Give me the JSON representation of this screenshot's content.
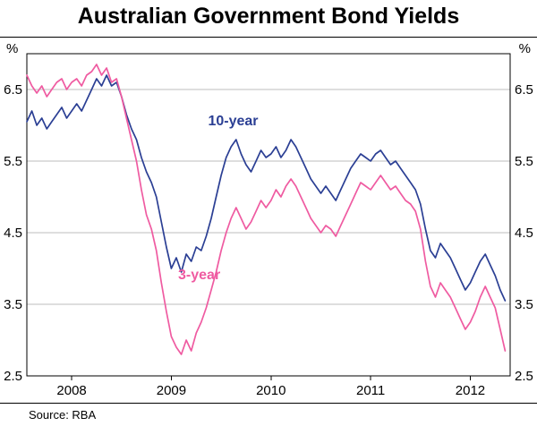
{
  "title": "Australian Government Bond Yields",
  "units": {
    "left": "%",
    "right": "%"
  },
  "source": "Source: RBA",
  "chart_data": {
    "type": "line",
    "title": "Australian Government Bond Yields",
    "ylabel": "%",
    "ylim": [
      2.5,
      7.0
    ],
    "yticks": [
      2.5,
      3.5,
      4.5,
      5.5,
      6.5
    ],
    "ytick_labels": [
      "2.5",
      "3.5",
      "4.5",
      "5.5",
      "6.5"
    ],
    "xlim": [
      2007.55,
      2012.4
    ],
    "xticks": [
      2008,
      2009,
      2010,
      2011,
      2012
    ],
    "xtick_labels": [
      "2008",
      "2009",
      "2010",
      "2011",
      "2012"
    ],
    "grid": true,
    "gridline_color": "#bcbcbc",
    "x_start": 2007.55,
    "x_step": 0.05,
    "series": [
      {
        "name": "10-year",
        "color": "#2b3f94",
        "values": [
          6.05,
          6.2,
          6.0,
          6.1,
          5.95,
          6.05,
          6.15,
          6.25,
          6.1,
          6.2,
          6.3,
          6.2,
          6.35,
          6.5,
          6.65,
          6.55,
          6.7,
          6.55,
          6.6,
          6.4,
          6.15,
          5.95,
          5.8,
          5.55,
          5.35,
          5.2,
          5.0,
          4.65,
          4.3,
          4.0,
          4.15,
          3.95,
          4.2,
          4.1,
          4.3,
          4.25,
          4.45,
          4.7,
          5.0,
          5.3,
          5.55,
          5.7,
          5.8,
          5.6,
          5.45,
          5.35,
          5.5,
          5.65,
          5.55,
          5.6,
          5.7,
          5.55,
          5.65,
          5.8,
          5.7,
          5.55,
          5.4,
          5.25,
          5.15,
          5.05,
          5.15,
          5.05,
          4.95,
          5.1,
          5.25,
          5.4,
          5.5,
          5.6,
          5.55,
          5.5,
          5.6,
          5.65,
          5.55,
          5.45,
          5.5,
          5.4,
          5.3,
          5.2,
          5.1,
          4.9,
          4.55,
          4.25,
          4.15,
          4.35,
          4.25,
          4.15,
          4.0,
          3.85,
          3.7,
          3.8,
          3.95,
          4.1,
          4.2,
          4.05,
          3.9,
          3.7,
          3.55
        ]
      },
      {
        "name": "3-year",
        "color": "#ef5ba1",
        "values": [
          6.7,
          6.55,
          6.45,
          6.55,
          6.4,
          6.5,
          6.6,
          6.65,
          6.5,
          6.6,
          6.65,
          6.55,
          6.7,
          6.75,
          6.85,
          6.7,
          6.8,
          6.6,
          6.65,
          6.4,
          6.1,
          5.8,
          5.5,
          5.1,
          4.75,
          4.55,
          4.25,
          3.8,
          3.4,
          3.05,
          2.9,
          2.8,
          3.0,
          2.85,
          3.1,
          3.25,
          3.45,
          3.7,
          3.95,
          4.25,
          4.5,
          4.7,
          4.85,
          4.7,
          4.55,
          4.65,
          4.8,
          4.95,
          4.85,
          4.95,
          5.1,
          5.0,
          5.15,
          5.25,
          5.15,
          5.0,
          4.85,
          4.7,
          4.6,
          4.5,
          4.6,
          4.55,
          4.45,
          4.6,
          4.75,
          4.9,
          5.05,
          5.2,
          5.15,
          5.1,
          5.2,
          5.3,
          5.2,
          5.1,
          5.15,
          5.05,
          4.95,
          4.9,
          4.8,
          4.55,
          4.1,
          3.75,
          3.6,
          3.8,
          3.7,
          3.6,
          3.45,
          3.3,
          3.15,
          3.25,
          3.4,
          3.6,
          3.75,
          3.6,
          3.45,
          3.15,
          2.85
        ]
      }
    ],
    "annotations": [
      {
        "text": "10-year",
        "x": 2009.62,
        "y": 6.0,
        "color": "#2b3f94"
      },
      {
        "text": "3-year",
        "x": 2009.28,
        "y": 3.85,
        "color": "#ef5ba1"
      }
    ]
  }
}
